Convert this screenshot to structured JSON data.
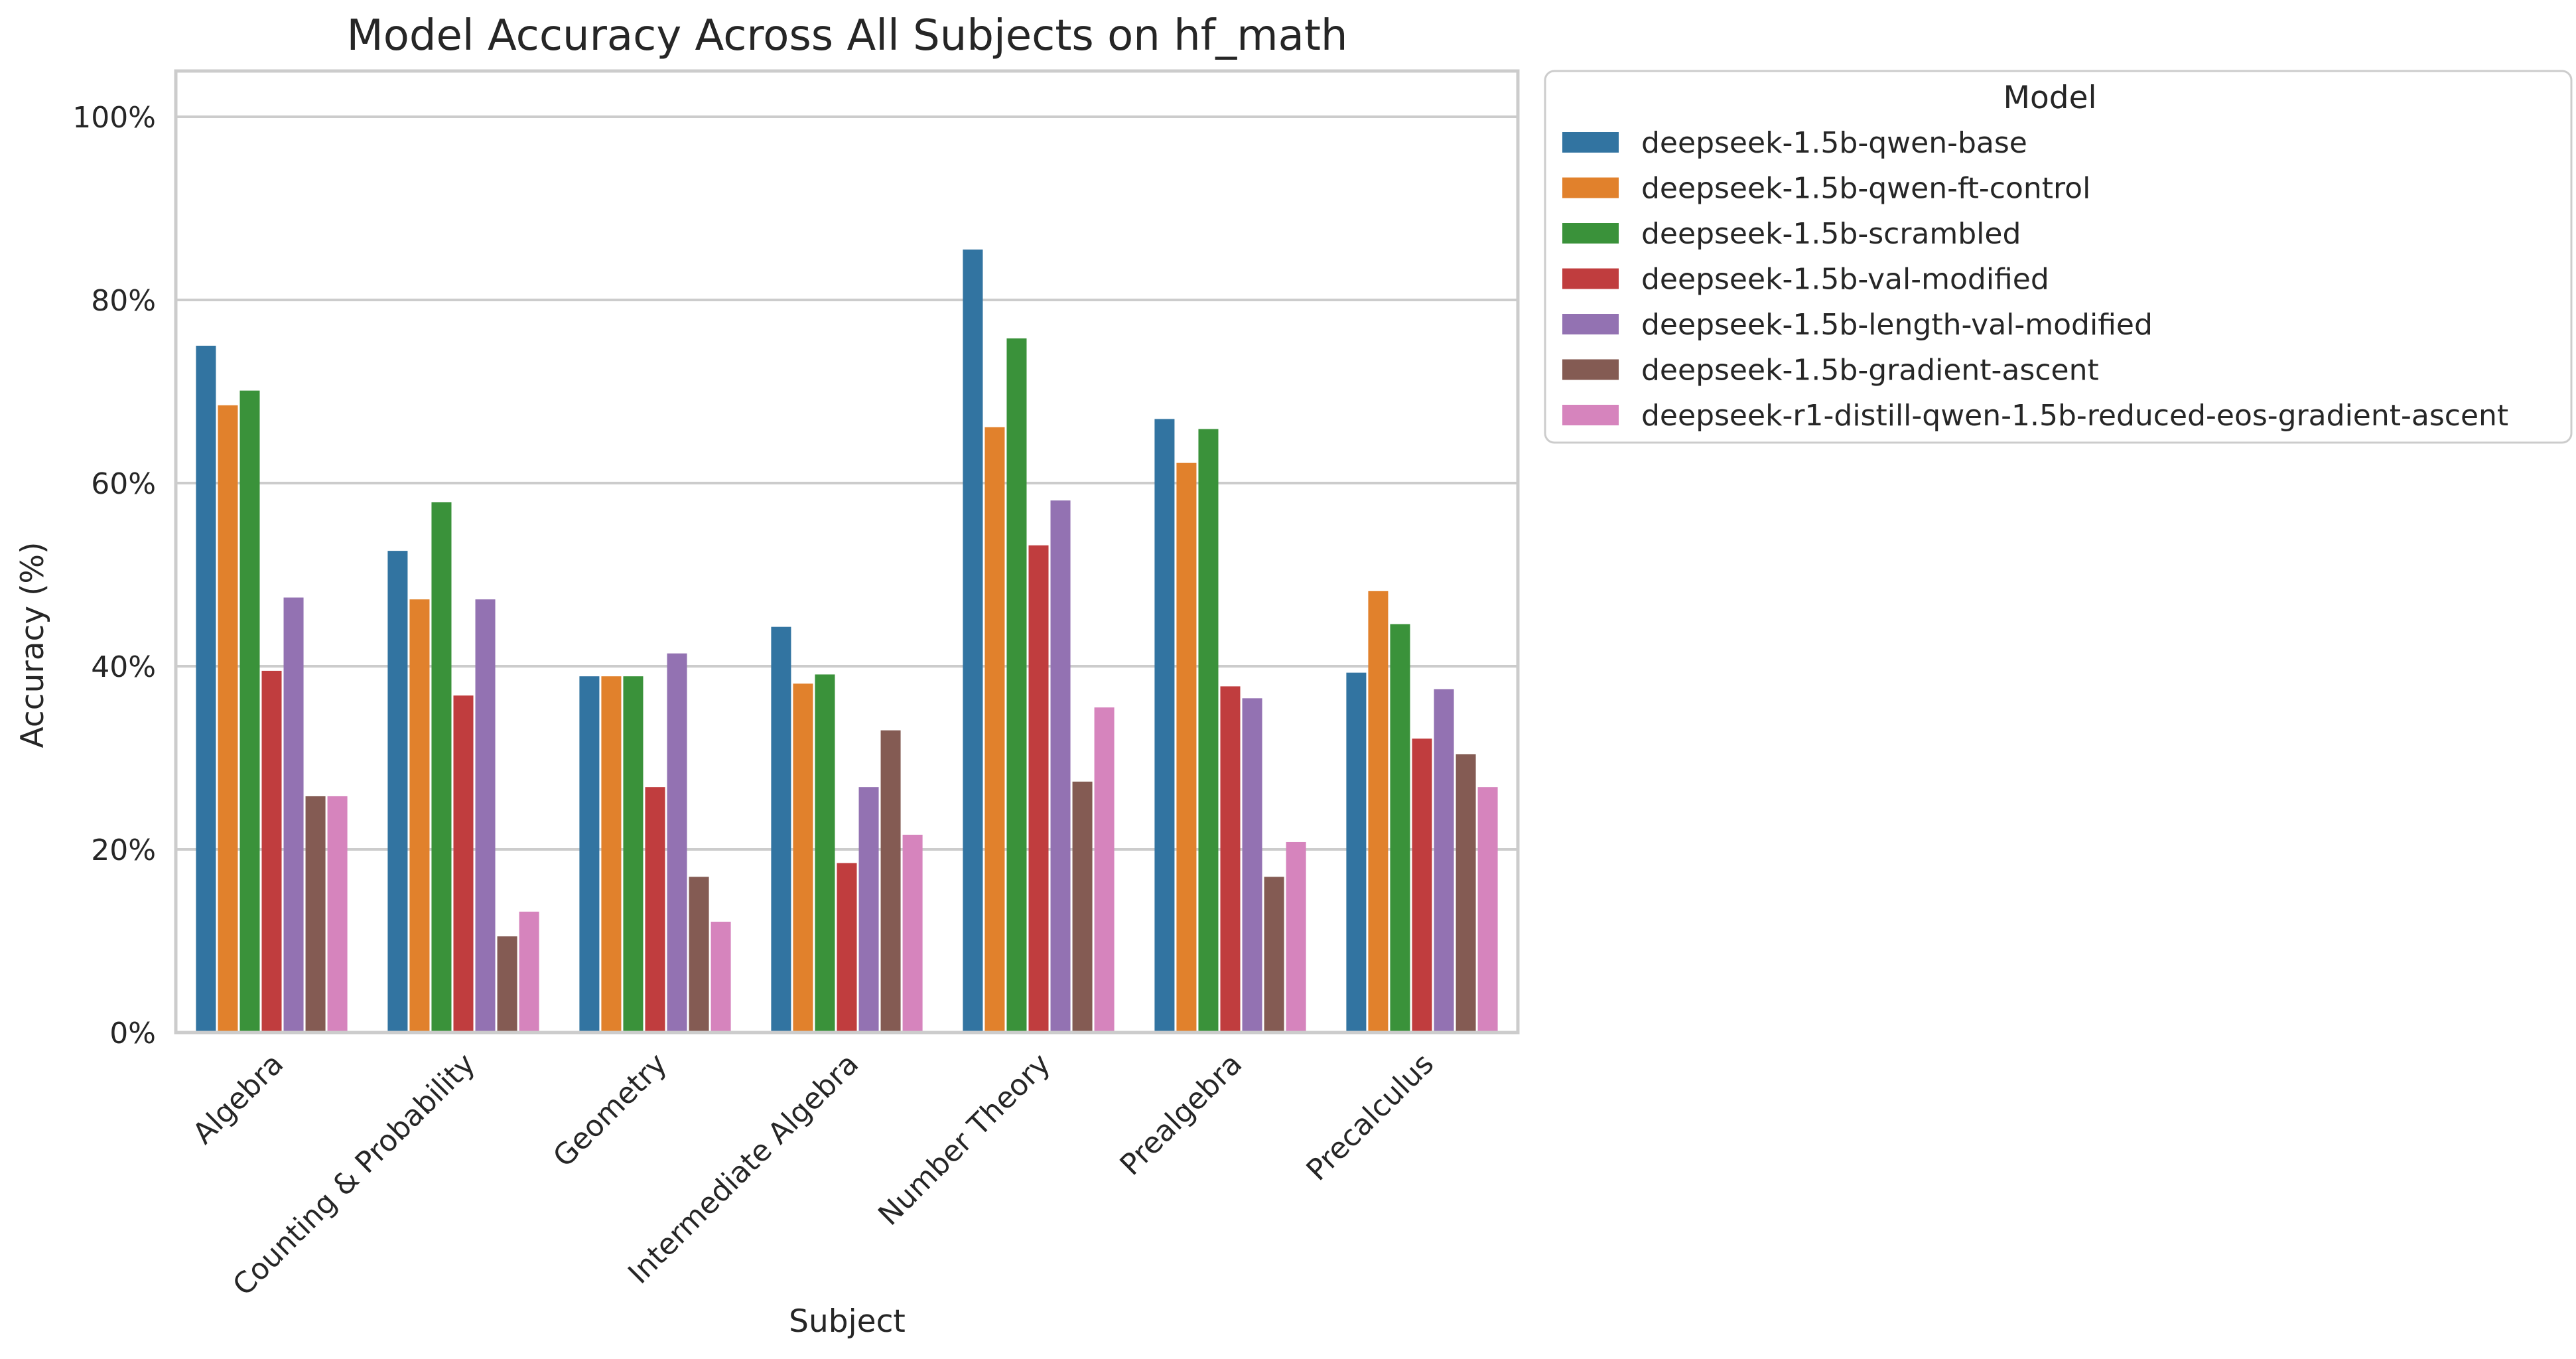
{
  "chart_data": {
    "type": "bar",
    "title": "Model Accuracy Across All Subjects on hf_math",
    "xlabel": "Subject",
    "ylabel": "Accuracy (%)",
    "ylim": [
      0,
      105
    ],
    "yticks": [
      0,
      20,
      40,
      60,
      80,
      100
    ],
    "ytick_labels": [
      "0%",
      "20%",
      "40%",
      "60%",
      "80%",
      "100%"
    ],
    "grid": "horizontal",
    "legend": {
      "title": "Model",
      "placement": "outside-upper-right"
    },
    "categories": [
      "Algebra",
      "Counting & Probability",
      "Geometry",
      "Intermediate Algebra",
      "Number Theory",
      "Prealgebra",
      "Precalculus"
    ],
    "series": [
      {
        "name": "deepseek-1.5b-qwen-base",
        "color": "#3274a1",
        "values": [
          75.0,
          52.6,
          38.9,
          44.3,
          85.5,
          67.0,
          39.3
        ]
      },
      {
        "name": "deepseek-1.5b-qwen-ft-control",
        "color": "#e1812c",
        "values": [
          68.5,
          47.3,
          38.9,
          38.1,
          66.1,
          62.2,
          48.2
        ]
      },
      {
        "name": "deepseek-1.5b-scrambled",
        "color": "#3a923a",
        "values": [
          70.1,
          57.9,
          38.9,
          39.1,
          75.8,
          65.9,
          44.6
        ]
      },
      {
        "name": "deepseek-1.5b-val-modified",
        "color": "#c03d3e",
        "values": [
          39.5,
          36.8,
          26.8,
          18.5,
          53.2,
          37.8,
          32.1
        ]
      },
      {
        "name": "deepseek-1.5b-length-val-modified",
        "color": "#9372b2",
        "values": [
          47.5,
          47.3,
          41.4,
          26.8,
          58.1,
          36.5,
          37.5
        ]
      },
      {
        "name": "deepseek-1.5b-gradient-ascent",
        "color": "#845b53",
        "values": [
          25.8,
          10.5,
          17.0,
          33.0,
          27.4,
          17.0,
          30.4
        ]
      },
      {
        "name": "deepseek-r1-distill-qwen-1.5b-reduced-eos-gradient-ascent",
        "color": "#d684bd",
        "values": [
          25.8,
          13.2,
          12.1,
          21.6,
          35.5,
          20.8,
          26.8
        ]
      }
    ]
  }
}
